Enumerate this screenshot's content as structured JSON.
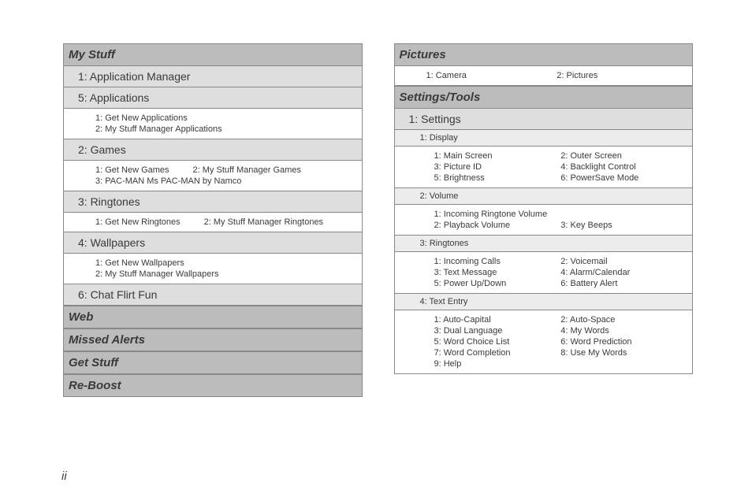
{
  "pageNumber": "ii",
  "left": {
    "sections": [
      {
        "title": "My Stuff",
        "items": [
          {
            "type": "l1",
            "text": "1: Application Manager"
          },
          {
            "type": "l1",
            "text": "5: Applications"
          },
          {
            "type": "l2",
            "lines": [
              {
                "w": "full",
                "t": "1: Get New Applications"
              },
              {
                "w": "full",
                "t": "2: My Stuff Manager Applications"
              }
            ]
          },
          {
            "type": "l1",
            "text": "2: Games"
          },
          {
            "type": "l2",
            "lines": [
              {
                "w": "inl",
                "t": "1: Get New Games"
              },
              {
                "w": "inl",
                "t": "2: My Stuff Manager Games"
              },
              {
                "w": "full",
                "t": "3: PAC-MAN Ms PAC-MAN by Namco"
              }
            ]
          },
          {
            "type": "l1",
            "text": "3: Ringtones"
          },
          {
            "type": "l2",
            "lines": [
              {
                "w": "inl",
                "t": "1: Get New Ringtones"
              },
              {
                "w": "inl",
                "t": "2: My Stuff Manager Ringtones"
              }
            ]
          },
          {
            "type": "l1",
            "text": "4: Wallpapers"
          },
          {
            "type": "l2",
            "lines": [
              {
                "w": "full",
                "t": "1: Get New Wallpapers"
              },
              {
                "w": "full",
                "t": "2: My Stuff Manager Wallpapers"
              }
            ]
          },
          {
            "type": "l1",
            "text": "6: Chat Flirt Fun"
          }
        ]
      },
      {
        "title": "Web",
        "items": []
      },
      {
        "title": "Missed Alerts",
        "items": []
      },
      {
        "title": "Get Stuff",
        "items": []
      },
      {
        "title": "Re-Boost",
        "items": []
      }
    ]
  },
  "right": {
    "sections": [
      {
        "title": "Pictures",
        "items": [
          {
            "type": "l2",
            "lines": [
              {
                "w": "half",
                "t": "1: Camera"
              },
              {
                "w": "half",
                "t": "2: Pictures"
              }
            ]
          }
        ]
      },
      {
        "title": "Settings/Tools",
        "items": [
          {
            "type": "l1",
            "text": "1: Settings"
          },
          {
            "type": "l3h",
            "text": "1: Display"
          },
          {
            "type": "l3",
            "lines": [
              {
                "w": "half",
                "t": "1: Main Screen"
              },
              {
                "w": "half",
                "t": "2: Outer Screen"
              },
              {
                "w": "half",
                "t": "3: Picture ID"
              },
              {
                "w": "half",
                "t": "4: Backlight Control"
              },
              {
                "w": "half",
                "t": "5: Brightness"
              },
              {
                "w": "half",
                "t": "6: PowerSave Mode"
              }
            ]
          },
          {
            "type": "l3h",
            "text": "2: Volume"
          },
          {
            "type": "l3",
            "lines": [
              {
                "w": "full",
                "t": "1: Incoming Ringtone Volume"
              },
              {
                "w": "half",
                "t": "2: Playback Volume"
              },
              {
                "w": "half",
                "t": "3: Key Beeps"
              }
            ]
          },
          {
            "type": "l3h",
            "text": "3: Ringtones"
          },
          {
            "type": "l3",
            "lines": [
              {
                "w": "half",
                "t": "1: Incoming Calls"
              },
              {
                "w": "half",
                "t": "2: Voicemail"
              },
              {
                "w": "half",
                "t": "3: Text Message"
              },
              {
                "w": "half",
                "t": "4: Alarm/Calendar"
              },
              {
                "w": "half",
                "t": "5: Power Up/Down"
              },
              {
                "w": "half",
                "t": "6: Battery Alert"
              }
            ]
          },
          {
            "type": "l3h",
            "text": "4: Text Entry"
          },
          {
            "type": "l3",
            "lines": [
              {
                "w": "half",
                "t": "1: Auto-Capital"
              },
              {
                "w": "half",
                "t": "2: Auto-Space"
              },
              {
                "w": "half",
                "t": "3: Dual Language"
              },
              {
                "w": "half",
                "t": "4: My Words"
              },
              {
                "w": "half",
                "t": "5: Word Choice List"
              },
              {
                "w": "half",
                "t": "6: Word Prediction"
              },
              {
                "w": "half",
                "t": "7: Word Completion"
              },
              {
                "w": "half",
                "t": "8: Use My Words"
              },
              {
                "w": "half",
                "t": "9: Help"
              }
            ]
          }
        ]
      }
    ]
  }
}
